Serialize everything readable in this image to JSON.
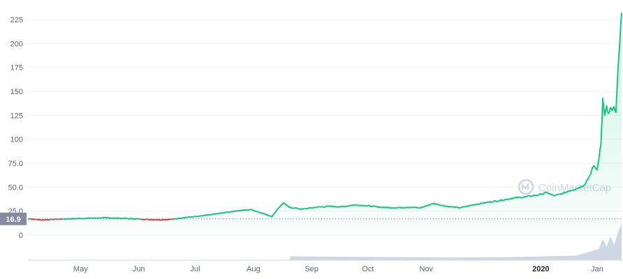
{
  "chart_data": {
    "type": "area",
    "x_unit": "date",
    "ylim": [
      0,
      235
    ],
    "yticks": [
      0,
      25.0,
      50.0,
      75.0,
      100,
      125,
      150,
      175,
      200,
      225
    ],
    "ytick_labels": [
      "0",
      "25.0",
      "50.0",
      "75.0",
      "100",
      "125",
      "150",
      "175",
      "200",
      "225"
    ],
    "xticks": [
      {
        "label": "May",
        "date": "2019-05-01",
        "bold": false
      },
      {
        "label": "Jun",
        "date": "2019-06-01",
        "bold": false
      },
      {
        "label": "Jul",
        "date": "2019-07-01",
        "bold": false
      },
      {
        "label": "Aug",
        "date": "2019-08-01",
        "bold": false
      },
      {
        "label": "Sep",
        "date": "2019-09-01",
        "bold": false
      },
      {
        "label": "Oct",
        "date": "2019-10-01",
        "bold": false
      },
      {
        "label": "Nov",
        "date": "2019-11-01",
        "bold": false
      },
      {
        "label": "2020",
        "date": "2020-01-01",
        "bold": true
      },
      {
        "label": "Jan",
        "date": "2020-01-31",
        "bold": false
      }
    ],
    "reference_line": {
      "value": 16.9,
      "label": "16.9"
    },
    "grid": true,
    "series": [
      {
        "kind": "price",
        "color_up": "#16c784",
        "color_down": "#ea3943",
        "points": [
          [
            "2019-04-03",
            17.0
          ],
          [
            "2019-04-10",
            15.8
          ],
          [
            "2019-04-17",
            16.4
          ],
          [
            "2019-04-24",
            16.9
          ],
          [
            "2019-05-01",
            17.3
          ],
          [
            "2019-05-08",
            17.8
          ],
          [
            "2019-05-15",
            18.0
          ],
          [
            "2019-05-22",
            17.5
          ],
          [
            "2019-05-29",
            17.0
          ],
          [
            "2019-06-05",
            16.3
          ],
          [
            "2019-06-12",
            15.9
          ],
          [
            "2019-06-19",
            16.5
          ],
          [
            "2019-06-26",
            18.5
          ],
          [
            "2019-07-03",
            19.5
          ],
          [
            "2019-07-10",
            21.5
          ],
          [
            "2019-07-17",
            23.5
          ],
          [
            "2019-07-24",
            25.5
          ],
          [
            "2019-07-31",
            26.5
          ],
          [
            "2019-08-07",
            22.0
          ],
          [
            "2019-08-11",
            19.5
          ],
          [
            "2019-08-14",
            27.5
          ],
          [
            "2019-08-17",
            33.5
          ],
          [
            "2019-08-20",
            29.0
          ],
          [
            "2019-08-27",
            27.0
          ],
          [
            "2019-09-03",
            29.0
          ],
          [
            "2019-09-10",
            30.0
          ],
          [
            "2019-09-17",
            29.5
          ],
          [
            "2019-09-24",
            31.5
          ],
          [
            "2019-10-01",
            30.5
          ],
          [
            "2019-10-08",
            29.0
          ],
          [
            "2019-10-15",
            28.5
          ],
          [
            "2019-10-22",
            29.0
          ],
          [
            "2019-10-29",
            28.5
          ],
          [
            "2019-11-05",
            33.0
          ],
          [
            "2019-11-12",
            30.0
          ],
          [
            "2019-11-19",
            28.5
          ],
          [
            "2019-11-26",
            31.5
          ],
          [
            "2019-12-03",
            34.0
          ],
          [
            "2019-12-10",
            36.0
          ],
          [
            "2019-12-17",
            38.5
          ],
          [
            "2019-12-24",
            40.0
          ],
          [
            "2019-12-31",
            42.0
          ],
          [
            "2020-01-04",
            44.5
          ],
          [
            "2020-01-08",
            41.0
          ],
          [
            "2020-01-12",
            43.0
          ],
          [
            "2020-01-16",
            46.0
          ],
          [
            "2020-01-20",
            48.5
          ],
          [
            "2020-01-24",
            52.0
          ],
          [
            "2020-01-27",
            62.0
          ],
          [
            "2020-01-29",
            72.0
          ],
          [
            "2020-01-31",
            68.0
          ],
          [
            "2020-02-02",
            95.0
          ],
          [
            "2020-02-03",
            143.0
          ],
          [
            "2020-02-04",
            125.0
          ],
          [
            "2020-02-05",
            135.0
          ],
          [
            "2020-02-06",
            127.0
          ],
          [
            "2020-02-07",
            133.0
          ],
          [
            "2020-02-08",
            130.0
          ],
          [
            "2020-02-09",
            134.0
          ],
          [
            "2020-02-10",
            128.0
          ],
          [
            "2020-02-11",
            170.0
          ],
          [
            "2020-02-12",
            200.0
          ],
          [
            "2020-02-13",
            232.0
          ]
        ]
      },
      {
        "kind": "volume",
        "color": "#cfd6e4",
        "points": [
          [
            "2019-04-03",
            0
          ],
          [
            "2019-08-20",
            0
          ],
          [
            "2019-08-21",
            0.1
          ],
          [
            "2019-09-15",
            0.09
          ],
          [
            "2019-10-15",
            0.08
          ],
          [
            "2019-11-15",
            0.07
          ],
          [
            "2019-12-15",
            0.08
          ],
          [
            "2020-01-05",
            0.1
          ],
          [
            "2020-01-20",
            0.12
          ],
          [
            "2020-01-27",
            0.22
          ],
          [
            "2020-02-01",
            0.3
          ],
          [
            "2020-02-03",
            0.55
          ],
          [
            "2020-02-05",
            0.35
          ],
          [
            "2020-02-07",
            0.62
          ],
          [
            "2020-02-09",
            0.4
          ],
          [
            "2020-02-11",
            0.7
          ],
          [
            "2020-02-13",
            0.95
          ]
        ]
      }
    ]
  },
  "watermark": {
    "text": "CoinMarketCap",
    "icon": "coinmarketcap-logo-icon"
  }
}
